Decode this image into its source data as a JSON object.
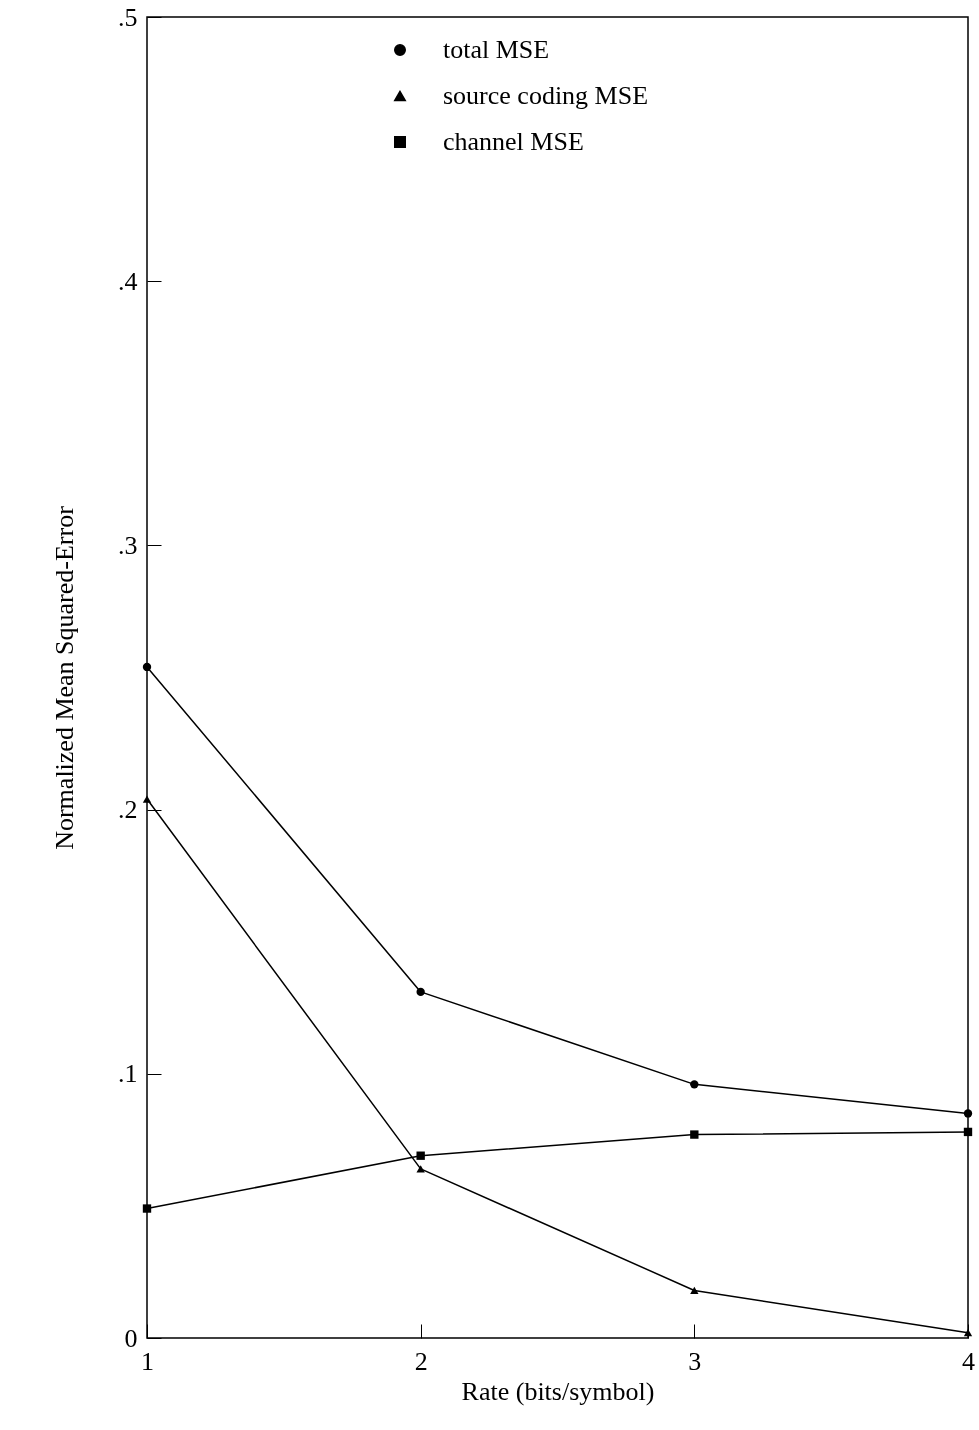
{
  "chart_data": {
    "type": "line",
    "xlabel": "Rate (bits/symbol)",
    "ylabel": "Normalized Mean Squared-Error",
    "x": [
      1,
      2,
      3,
      4
    ],
    "series": [
      {
        "name": "total MSE",
        "color": "#000000",
        "marker": "circle",
        "values": [
          0.254,
          0.131,
          0.096,
          0.085
        ]
      },
      {
        "name": "source coding MSE",
        "color": "#000000",
        "marker": "triangle",
        "values": [
          0.204,
          0.064,
          0.018,
          0.002
        ]
      },
      {
        "name": "channel MSE",
        "color": "#000000",
        "marker": "square",
        "values": [
          0.049,
          0.069,
          0.077,
          0.078
        ]
      }
    ],
    "xlim": [
      1,
      4
    ],
    "xticks": [
      1,
      2,
      3,
      4
    ],
    "ylim": [
      0,
      0.5
    ],
    "yticks": [
      0,
      {
        "value": 0.1,
        "label": ".1"
      },
      {
        "value": 0.2,
        "label": ".2"
      },
      {
        "value": 0.3,
        "label": ".3"
      },
      {
        "value": 0.4,
        "label": ".4"
      },
      {
        "value": 0.5,
        "label": ".5"
      }
    ],
    "legend": "top",
    "grid": false
  }
}
